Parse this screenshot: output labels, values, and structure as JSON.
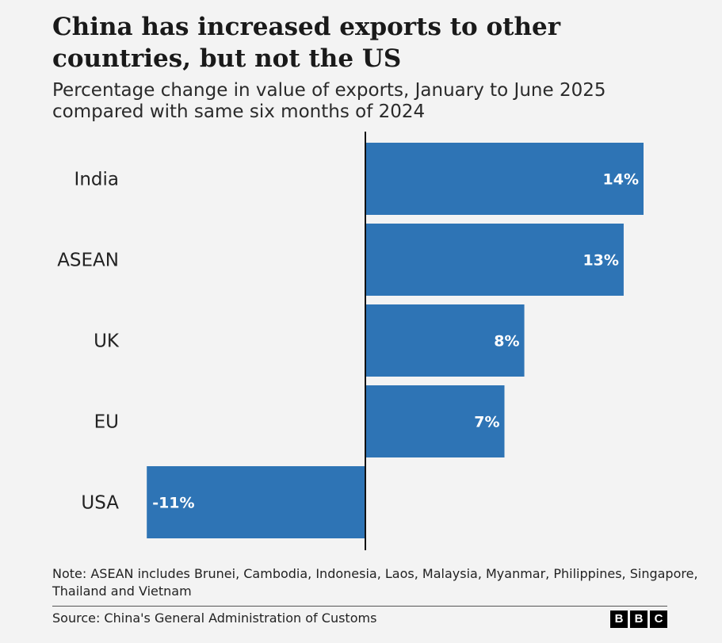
{
  "header": {
    "title": "China has increased exports to other countries, but not the US",
    "subtitle": "Percentage change in value of exports, January to June 2025 compared with same six months of 2024"
  },
  "chart_data": {
    "type": "bar",
    "orientation": "horizontal",
    "categories": [
      "India",
      "ASEAN",
      "UK",
      "EU",
      "USA"
    ],
    "values": [
      14,
      13,
      8,
      7,
      -11
    ],
    "value_labels": [
      "14%",
      "13%",
      "8%",
      "7%",
      "-11%"
    ],
    "unit": "%",
    "zero_line": true,
    "grid": false,
    "legend": "none",
    "bar_color": "#2e74b5",
    "xlim": [
      -11,
      14
    ]
  },
  "footer": {
    "note": "Note: ASEAN includes Brunei, Cambodia, Indonesia, Laos, Malaysia, Myanmar, Philippines, Singapore, Thailand and Vietnam",
    "source": "Source: China's General Administration of Customs",
    "logo_letters": [
      "B",
      "B",
      "C"
    ]
  }
}
